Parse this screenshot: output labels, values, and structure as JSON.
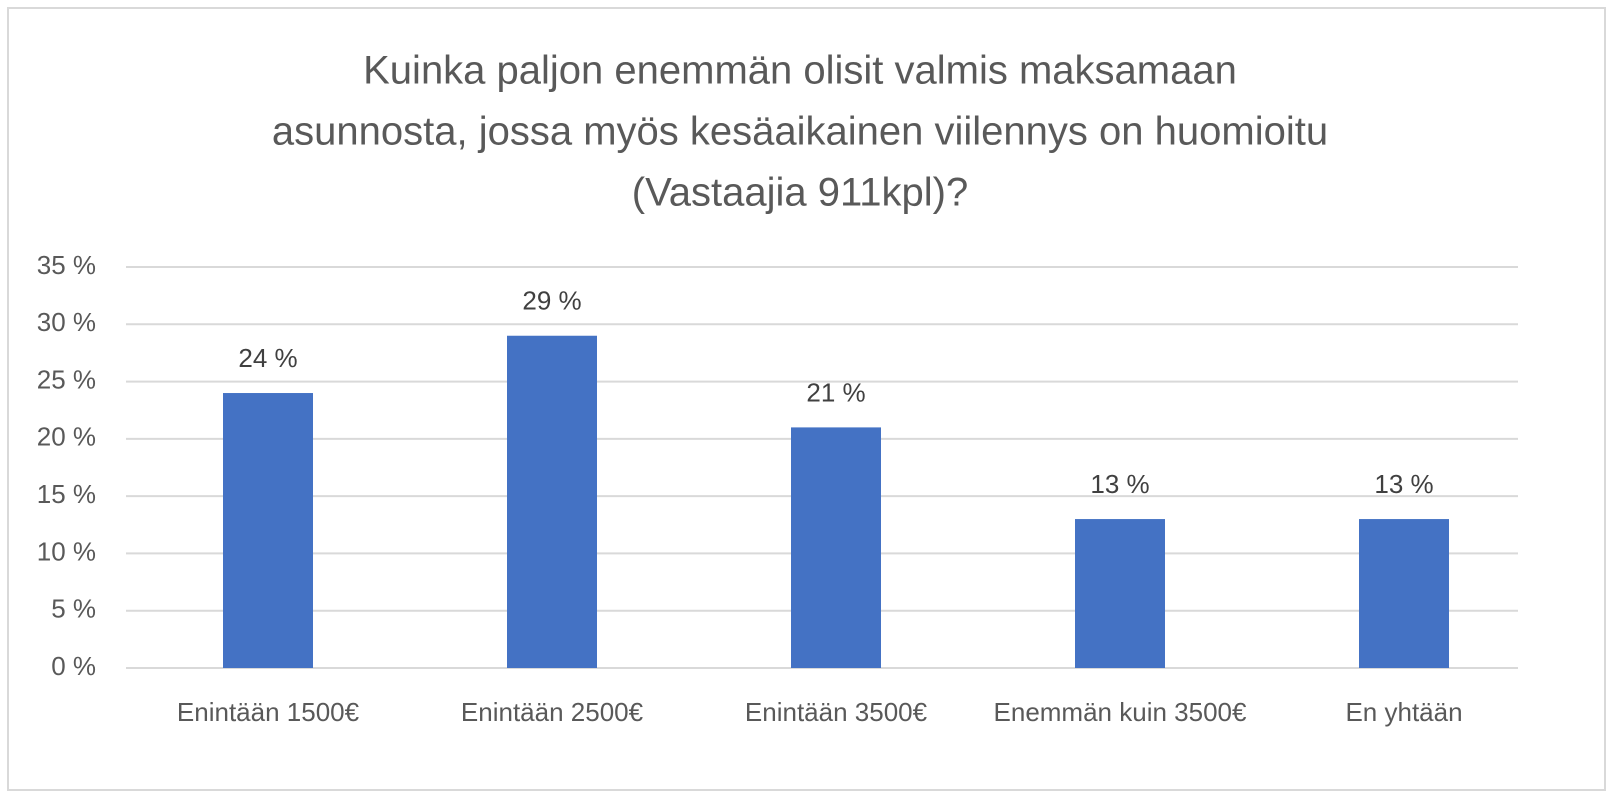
{
  "chart_data": {
    "type": "bar",
    "title": [
      "Kuinka paljon enemmän olisit valmis maksamaan",
      "asunnosta, jossa myös kesäaikainen viilennys on huomioitu",
      "(Vastaajia 911kpl)?"
    ],
    "categories": [
      "Enintään 1500€",
      "Enintään 2500€",
      "Enintään 3500€",
      "Enemmän kuin 3500€",
      "En yhtään"
    ],
    "values": [
      24,
      29,
      21,
      13,
      13
    ],
    "value_labels": [
      "24 %",
      "29 %",
      "21 %",
      "13 %",
      "13 %"
    ],
    "color": "#4472c4",
    "ylim": [
      0,
      35
    ],
    "yticks": [
      {
        "value": 0,
        "label": "0 %"
      },
      {
        "value": 5,
        "label": "5 %"
      },
      {
        "value": 10,
        "label": "10 %"
      },
      {
        "value": 15,
        "label": "15 %"
      },
      {
        "value": 20,
        "label": "20 %"
      },
      {
        "value": 25,
        "label": "25 %"
      },
      {
        "value": 30,
        "label": "30 %"
      },
      {
        "value": 35,
        "label": "35 %"
      }
    ],
    "grid": true
  }
}
